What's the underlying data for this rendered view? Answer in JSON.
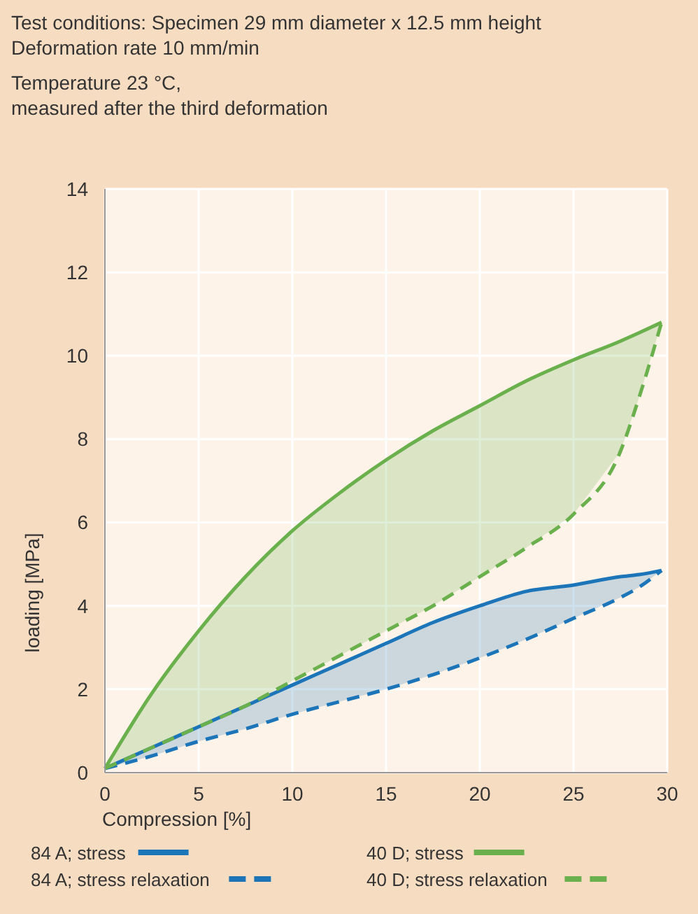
{
  "chart_data": {
    "type": "line",
    "title": "Test conditions: Specimen 29 mm diameter x 12.5 mm height",
    "subtitle": "Deformation rate 10 mm/min",
    "annotations": [
      "Temperature 23 °C,",
      "measured after the third deformation"
    ],
    "xlabel": "Compression [%]",
    "ylabel": "loading [MPa]",
    "x": [
      0,
      2.5,
      5,
      7.5,
      10,
      12.5,
      15,
      17.5,
      20,
      22.5,
      25,
      27.5,
      28.5,
      29.7
    ],
    "xlim": [
      0,
      30
    ],
    "xticks": [
      0,
      5,
      10,
      15,
      20,
      25,
      30
    ],
    "ylim": [
      0,
      14
    ],
    "yticks": [
      0,
      2,
      4,
      6,
      8,
      10,
      12,
      14
    ],
    "grid": true,
    "legend": "bottom",
    "marker": "none",
    "series": [
      {
        "name": "84 A; stress",
        "color": "#1b75b8",
        "line_style": "solid",
        "values": [
          0.1,
          0.6,
          1.1,
          1.6,
          2.1,
          2.6,
          3.1,
          3.6,
          4.0,
          4.35,
          4.5,
          4.7,
          4.75,
          4.85
        ],
        "lower": [
          0.1,
          0.4,
          0.75,
          1.05,
          1.4,
          1.7,
          2.0,
          2.35,
          2.75,
          3.2,
          3.7,
          4.2,
          4.45,
          4.85
        ],
        "upper": [
          0.1,
          0.6,
          1.1,
          1.6,
          2.1,
          2.6,
          3.1,
          3.6,
          4.0,
          4.35,
          4.5,
          4.7,
          4.75,
          4.85
        ]
      },
      {
        "name": "84 A; stress relaxation",
        "color": "#1b75b8",
        "line_style": "dashed",
        "values": [
          0.1,
          0.4,
          0.75,
          1.05,
          1.4,
          1.7,
          2.0,
          2.35,
          2.75,
          3.2,
          3.7,
          4.2,
          4.45,
          4.85
        ]
      },
      {
        "name": "40 D; stress",
        "color": "#6ab04c",
        "line_style": "solid",
        "values": [
          0.1,
          1.9,
          3.4,
          4.7,
          5.8,
          6.7,
          7.5,
          8.2,
          8.8,
          9.4,
          9.9,
          10.35,
          10.55,
          10.8
        ],
        "lower": [
          0.1,
          0.6,
          1.1,
          1.6,
          2.2,
          2.8,
          3.4,
          4.0,
          4.7,
          5.4,
          6.2,
          7.7,
          9.0,
          10.8
        ],
        "upper": [
          0.1,
          1.9,
          3.4,
          4.7,
          5.8,
          6.7,
          7.5,
          8.2,
          8.8,
          9.4,
          9.9,
          10.35,
          10.55,
          10.8
        ]
      },
      {
        "name": "40 D; stress relaxation",
        "color": "#6ab04c",
        "line_style": "dashed",
        "values": [
          0.1,
          0.6,
          1.1,
          1.6,
          2.2,
          2.8,
          3.4,
          4.0,
          4.7,
          5.4,
          6.2,
          7.7,
          9.0,
          10.8
        ]
      }
    ]
  }
}
